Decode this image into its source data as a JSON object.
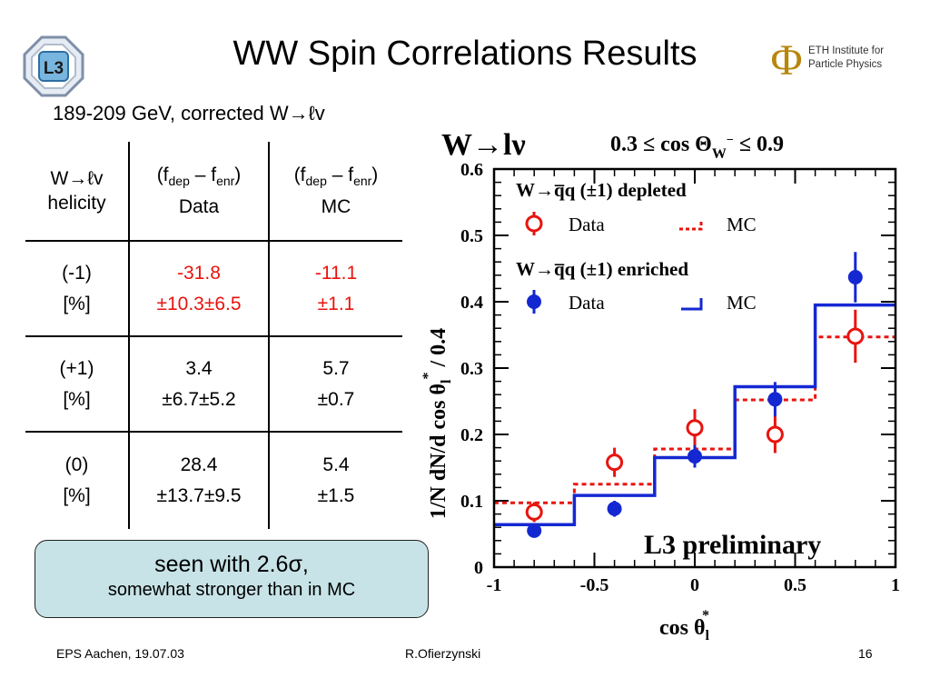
{
  "header": {
    "title": "WW Spin Correlations Results",
    "subtitle": "189-209 GeV, corrected W→ℓv",
    "l3_logo_text": "L3",
    "eth_logo_text_line1": "ETH Institute for",
    "eth_logo_text_line2": "Particle Physics",
    "eth_symbol": "Φ"
  },
  "table": {
    "header": {
      "c1_line1": "W→ℓv",
      "c1_line2": "helicity",
      "c2_prefix": "(f",
      "c2_sub1": "dep",
      "c2_mid": " – f",
      "c2_sub2": "enr",
      "c2_suffix": ")",
      "c2_line2": "Data",
      "c3_prefix": "(f",
      "c3_sub1": "dep",
      "c3_mid": " – f",
      "c3_sub2": "enr",
      "c3_suffix": ")",
      "c3_line2": "MC"
    },
    "rows": [
      {
        "helicity": "(-1)",
        "unit": "[%]",
        "data_value": "-31.8",
        "data_error": "±10.3±6.5",
        "mc_value": "-11.1",
        "mc_error": "±1.1"
      },
      {
        "helicity": "(+1)",
        "unit": "[%]",
        "data_value": "3.4",
        "data_error": "±6.7±5.2",
        "mc_value": "5.7",
        "mc_error": "±0.7"
      },
      {
        "helicity": "(0)",
        "unit": "[%]",
        "data_value": "28.4",
        "data_error": "±13.7±9.5",
        "mc_value": "5.4",
        "mc_error": "±1.5"
      }
    ],
    "highlight_color": "#e8140f"
  },
  "callout": {
    "line1": "seen with 2.6σ,",
    "line2": "somewhat stronger than in MC",
    "background": "#c7e3e7"
  },
  "footer": {
    "left": "EPS Aachen, 19.07.03",
    "center": "R.Ofierzynski",
    "right": "16"
  },
  "chart_data": {
    "type": "line",
    "title_left": "W→lν",
    "title_right": "0.3 ≤ cos Θ",
    "title_right_sub": "W",
    "title_right_sup": "−",
    "title_right_end": " ≤ 0.9",
    "ylabel": "1/N dN/d cos θ",
    "ylabel_sub": "l",
    "ylabel_sup": "*",
    "ylabel_suffix": " / 0.4",
    "xlabel": "cos θ",
    "xlabel_sub": "l",
    "xlabel_sup": "*",
    "annotation": "L3 preliminary",
    "xlim": [
      -1,
      1
    ],
    "ylim": [
      0,
      0.6
    ],
    "xticks": [
      -1,
      -0.5,
      0,
      0.5,
      1
    ],
    "xtick_labels": [
      "-1",
      "-0.5",
      "0",
      "0.5",
      "1"
    ],
    "yticks": [
      0,
      0.1,
      0.2,
      0.3,
      0.4,
      0.5,
      0.6
    ],
    "ytick_labels": [
      "0",
      "0.1",
      "0.2",
      "0.3",
      "0.4",
      "0.5",
      "0.6"
    ],
    "legend": {
      "heading1": "W→q̅q (±1) depleted",
      "heading2": "W→q̅q (±1) enriched",
      "data_label": "Data",
      "mc_label": "MC"
    },
    "bin_edges": [
      -1,
      -0.6,
      -0.2,
      0.2,
      0.6,
      1
    ],
    "series": [
      {
        "role": "depleted-mc",
        "style": "histogram-dashed",
        "color": "#e8140f",
        "values": [
          0.097,
          0.125,
          0.178,
          0.252,
          0.347
        ]
      },
      {
        "role": "enriched-mc",
        "style": "histogram-solid",
        "color": "#1428d2",
        "values": [
          0.064,
          0.108,
          0.165,
          0.272,
          0.395
        ]
      },
      {
        "role": "depleted-data",
        "style": "open-circle",
        "color": "#e8140f",
        "x": [
          -0.8,
          -0.4,
          0,
          0.4,
          0.8
        ],
        "y": [
          0.083,
          0.158,
          0.21,
          0.2,
          0.348
        ],
        "err": [
          0.015,
          0.022,
          0.028,
          0.028,
          0.04
        ]
      },
      {
        "role": "enriched-data",
        "style": "filled-circle",
        "color": "#1428d2",
        "x": [
          -0.8,
          -0.4,
          0,
          0.4,
          0.8
        ],
        "y": [
          0.055,
          0.088,
          0.167,
          0.253,
          0.437
        ],
        "err": [
          0.008,
          0.012,
          0.017,
          0.026,
          0.038
        ]
      }
    ]
  }
}
